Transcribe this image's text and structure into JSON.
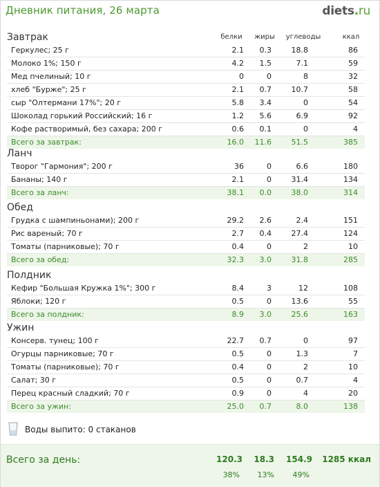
{
  "title": "Дневник питания, 26 марта",
  "logo": {
    "main": "diets",
    "dot": ".",
    "tld": "ru"
  },
  "columns": {
    "protein": "белки",
    "fat": "жиры",
    "carbs": "углеводы",
    "kcal": "ккал"
  },
  "sections": [
    {
      "title": "Завтрак",
      "items": [
        {
          "name": "Геркулес; 25 г",
          "protein": "2.1",
          "fat": "0.3",
          "carbs": "18.8",
          "kcal": "86"
        },
        {
          "name": "Молоко 1%; 150 г",
          "protein": "4.2",
          "fat": "1.5",
          "carbs": "7.1",
          "kcal": "59"
        },
        {
          "name": "Мед пчелиный; 10 г",
          "protein": "0",
          "fat": "0",
          "carbs": "8",
          "kcal": "32"
        },
        {
          "name": "хлеб \"Бурже\"; 25 г",
          "protein": "2.1",
          "fat": "0.7",
          "carbs": "10.7",
          "kcal": "58"
        },
        {
          "name": "сыр \"Олтермани 17%\"; 20 г",
          "protein": "5.8",
          "fat": "3.4",
          "carbs": "0",
          "kcal": "54"
        },
        {
          "name": "Шоколад горький Российский; 16 г",
          "protein": "1.2",
          "fat": "5.6",
          "carbs": "6.9",
          "kcal": "92"
        },
        {
          "name": "Кофе растворимый, без сахара; 200 г",
          "protein": "0.6",
          "fat": "0.1",
          "carbs": "0",
          "kcal": "4"
        }
      ],
      "total": {
        "name": "Всего за завтрак:",
        "protein": "16.0",
        "fat": "11.6",
        "carbs": "51.5",
        "kcal": "385"
      }
    },
    {
      "title": "Ланч",
      "items": [
        {
          "name": "Творог \"Гармония\"; 200 г",
          "protein": "36",
          "fat": "0",
          "carbs": "6.6",
          "kcal": "180"
        },
        {
          "name": "Бананы; 140 г",
          "protein": "2.1",
          "fat": "0",
          "carbs": "31.4",
          "kcal": "134"
        }
      ],
      "total": {
        "name": "Всего за ланч:",
        "protein": "38.1",
        "fat": "0.0",
        "carbs": "38.0",
        "kcal": "314"
      }
    },
    {
      "title": "Обед",
      "items": [
        {
          "name": "Грудка с шампиньонами); 200 г",
          "protein": "29.2",
          "fat": "2.6",
          "carbs": "2.4",
          "kcal": "151"
        },
        {
          "name": "Рис вареный; 70 г",
          "protein": "2.7",
          "fat": "0.4",
          "carbs": "27.4",
          "kcal": "124"
        },
        {
          "name": "Томаты (парниковые); 70 г",
          "protein": "0.4",
          "fat": "0",
          "carbs": "2",
          "kcal": "10"
        }
      ],
      "total": {
        "name": "Всего за обед:",
        "protein": "32.3",
        "fat": "3.0",
        "carbs": "31.8",
        "kcal": "285"
      }
    },
    {
      "title": "Полдник",
      "items": [
        {
          "name": "Кефир \"Большая Кружка 1%\"; 300 г",
          "protein": "8.4",
          "fat": "3",
          "carbs": "12",
          "kcal": "108"
        },
        {
          "name": "Яблоки; 120 г",
          "protein": "0.5",
          "fat": "0",
          "carbs": "13.6",
          "kcal": "55"
        }
      ],
      "total": {
        "name": "Всего за полдник:",
        "protein": "8.9",
        "fat": "3.0",
        "carbs": "25.6",
        "kcal": "163"
      }
    },
    {
      "title": "Ужин",
      "items": [
        {
          "name": "Консерв. тунец; 100 г",
          "protein": "22.7",
          "fat": "0.7",
          "carbs": "0",
          "kcal": "97"
        },
        {
          "name": "Огурцы парниковые; 70 г",
          "protein": "0.5",
          "fat": "0",
          "carbs": "1.3",
          "kcal": "7"
        },
        {
          "name": "Томаты (парниковые); 70 г",
          "protein": "0.4",
          "fat": "0",
          "carbs": "2",
          "kcal": "10"
        },
        {
          "name": "Салат; 30 г",
          "protein": "0.5",
          "fat": "0",
          "carbs": "0.7",
          "kcal": "4"
        },
        {
          "name": "Перец красный сладкий; 70 г",
          "protein": "0.9",
          "fat": "0",
          "carbs": "4",
          "kcal": "20"
        }
      ],
      "total": {
        "name": "Всего за ужин:",
        "protein": "25.0",
        "fat": "0.7",
        "carbs": "8.0",
        "kcal": "138"
      }
    }
  ],
  "water": {
    "text": "Воды выпито: 0 стаканов",
    "icon": "glass-icon"
  },
  "day_total": {
    "label": "Всего за день:",
    "protein": "120.3",
    "fat": "18.3",
    "carbs": "154.9",
    "kcal": "1285 ккал",
    "protein_pct": "38%",
    "fat_pct": "13%",
    "carbs_pct": "49%"
  },
  "colors": {
    "accent": "#4a9a2e",
    "total_bg": "#eef6e9"
  }
}
